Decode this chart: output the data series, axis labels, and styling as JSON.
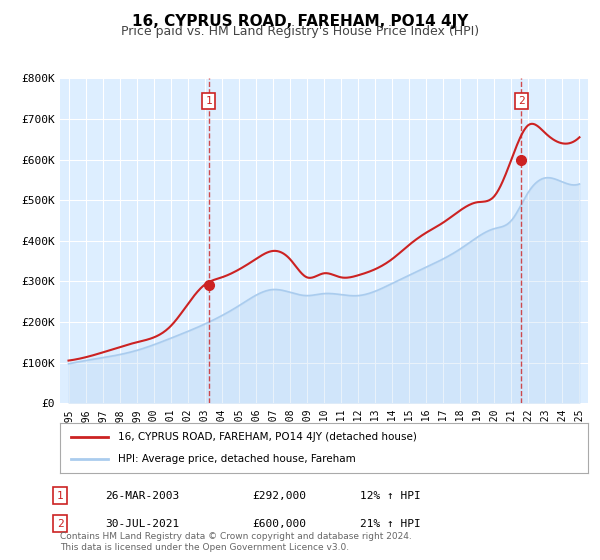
{
  "title": "16, CYPRUS ROAD, FAREHAM, PO14 4JY",
  "subtitle": "Price paid vs. HM Land Registry's House Price Index (HPI)",
  "bg_color": "#ffffff",
  "plot_bg_color": "#ddeeff",
  "grid_color": "#ffffff",
  "ylim": [
    0,
    800000
  ],
  "yticks": [
    0,
    100000,
    200000,
    300000,
    400000,
    500000,
    600000,
    700000,
    800000
  ],
  "ytick_labels": [
    "£0",
    "£100K",
    "£200K",
    "£300K",
    "£400K",
    "£500K",
    "£600K",
    "£700K",
    "£800K"
  ],
  "xlim_start": 1994.5,
  "xlim_end": 2025.5,
  "xticks": [
    1995,
    1996,
    1997,
    1998,
    1999,
    2000,
    2001,
    2002,
    2003,
    2004,
    2005,
    2006,
    2007,
    2008,
    2009,
    2010,
    2011,
    2012,
    2013,
    2014,
    2015,
    2016,
    2017,
    2018,
    2019,
    2020,
    2021,
    2022,
    2023,
    2024,
    2025
  ],
  "hpi_color": "#aaccee",
  "price_color": "#cc2222",
  "marker_color": "#cc2222",
  "sale1_x": 2003.23,
  "sale1_y": 292000,
  "sale1_label": "1",
  "sale1_date": "26-MAR-2003",
  "sale1_price": "£292,000",
  "sale1_hpi": "12% ↑ HPI",
  "sale2_x": 2021.58,
  "sale2_y": 600000,
  "sale2_label": "2",
  "sale2_date": "30-JUL-2021",
  "sale2_price": "£600,000",
  "sale2_hpi": "21% ↑ HPI",
  "legend_line1": "16, CYPRUS ROAD, FAREHAM, PO14 4JY (detached house)",
  "legend_line2": "HPI: Average price, detached house, Fareham",
  "footer": "Contains HM Land Registry data © Crown copyright and database right 2024.\nThis data is licensed under the Open Government Licence v3.0."
}
